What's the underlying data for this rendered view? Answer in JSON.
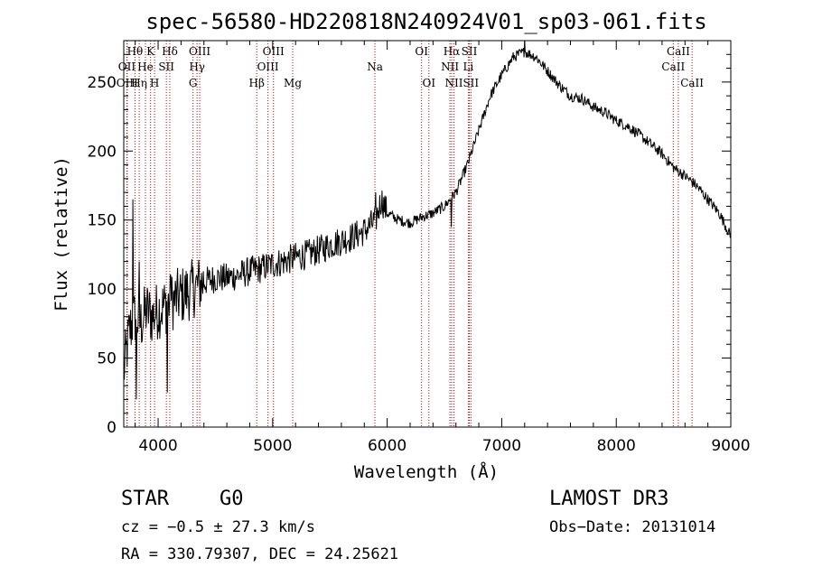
{
  "chart_data": {
    "type": "line",
    "title": "spec-56580-HD220818N240924V01_sp03-061.fits",
    "xlabel": "Wavelength (Å)",
    "ylabel": "Flux (relative)",
    "xlim": [
      3700,
      9000
    ],
    "ylim": [
      0,
      280
    ],
    "x_ticks": [
      4000,
      5000,
      6000,
      7000,
      8000,
      9000
    ],
    "y_ticks": [
      0,
      50,
      100,
      150,
      200,
      250
    ],
    "color": "#000000",
    "line_color": "#cc0000",
    "spectrum": {
      "name": "Flux",
      "x": [
        3700,
        3750,
        3800,
        3850,
        3900,
        3950,
        4000,
        4100,
        4200,
        4300,
        4400,
        4500,
        4600,
        4700,
        4800,
        4900,
        5000,
        5100,
        5200,
        5300,
        5400,
        5500,
        5600,
        5700,
        5800,
        5900,
        5950,
        6000,
        6100,
        6200,
        6300,
        6400,
        6500,
        6600,
        6700,
        6800,
        6900,
        7000,
        7100,
        7200,
        7300,
        7400,
        7500,
        7600,
        7700,
        7800,
        7900,
        8000,
        8100,
        8200,
        8300,
        8400,
        8500,
        8600,
        8700,
        8800,
        8900,
        9000
      ],
      "y": [
        40,
        70,
        80,
        75,
        85,
        80,
        85,
        90,
        95,
        100,
        105,
        108,
        108,
        110,
        113,
        115,
        118,
        120,
        123,
        125,
        128,
        132,
        135,
        138,
        142,
        150,
        165,
        155,
        150,
        148,
        152,
        155,
        160,
        170,
        190,
        215,
        240,
        255,
        268,
        272,
        268,
        258,
        248,
        240,
        238,
        232,
        228,
        222,
        218,
        212,
        205,
        198,
        188,
        182,
        175,
        165,
        155,
        138
      ],
      "spikes": [
        [
          3780,
          165
        ],
        [
          3810,
          20
        ],
        [
          3835,
          120
        ],
        [
          4080,
          25
        ],
        [
          4110,
          110
        ],
        [
          5900,
          170
        ],
        [
          6560,
          145
        ],
        [
          7200,
          282
        ]
      ]
    },
    "lines": [
      {
        "name": "Hθ",
        "x": 3798,
        "row": 0
      },
      {
        "name": "OII",
        "x": 3727,
        "row": 1
      },
      {
        "name": "OIII",
        "x": 3730,
        "row": 2
      },
      {
        "name": "Hη",
        "x": 3835,
        "row": 2
      },
      {
        "name": "He",
        "x": 3889,
        "row": 1
      },
      {
        "name": "K",
        "x": 3934,
        "row": 0
      },
      {
        "name": "SII",
        "x": 4072,
        "row": 1
      },
      {
        "name": "H",
        "x": 3969,
        "row": 2
      },
      {
        "name": "Hδ",
        "x": 4102,
        "row": 0
      },
      {
        "name": "OIII",
        "x": 4363,
        "row": 0
      },
      {
        "name": "Hγ",
        "x": 4340,
        "row": 1
      },
      {
        "name": "G",
        "x": 4305,
        "row": 2
      },
      {
        "name": "Hβ",
        "x": 4861,
        "row": 2
      },
      {
        "name": "OIII",
        "x": 5007,
        "row": 0
      },
      {
        "name": "OIII",
        "x": 4959,
        "row": 1
      },
      {
        "name": "Mg",
        "x": 5175,
        "row": 2
      },
      {
        "name": "Na",
        "x": 5893,
        "row": 1
      },
      {
        "name": "OI",
        "x": 6300,
        "row": 0
      },
      {
        "name": "OI",
        "x": 6364,
        "row": 2
      },
      {
        "name": "Hα",
        "x": 6563,
        "row": 0
      },
      {
        "name": "NII",
        "x": 6548,
        "row": 1
      },
      {
        "name": "NII",
        "x": 6583,
        "row": 2
      },
      {
        "name": "SII",
        "x": 6717,
        "row": 0
      },
      {
        "name": "Li",
        "x": 6708,
        "row": 1
      },
      {
        "name": "SII",
        "x": 6731,
        "row": 2
      },
      {
        "name": "CaII",
        "x": 8542,
        "row": 0
      },
      {
        "name": "CaII",
        "x": 8498,
        "row": 1
      },
      {
        "name": "CaII",
        "x": 8662,
        "row": 2
      }
    ]
  },
  "info": {
    "object_class": "STAR",
    "subclass": "G0",
    "survey": "LAMOST DR3",
    "redshift": "cz = −0.5 ± 27.3 km/s",
    "obs_date": "Obs−Date: 20131014",
    "coords": "RA = 330.79307, DEC =  24.25621"
  }
}
